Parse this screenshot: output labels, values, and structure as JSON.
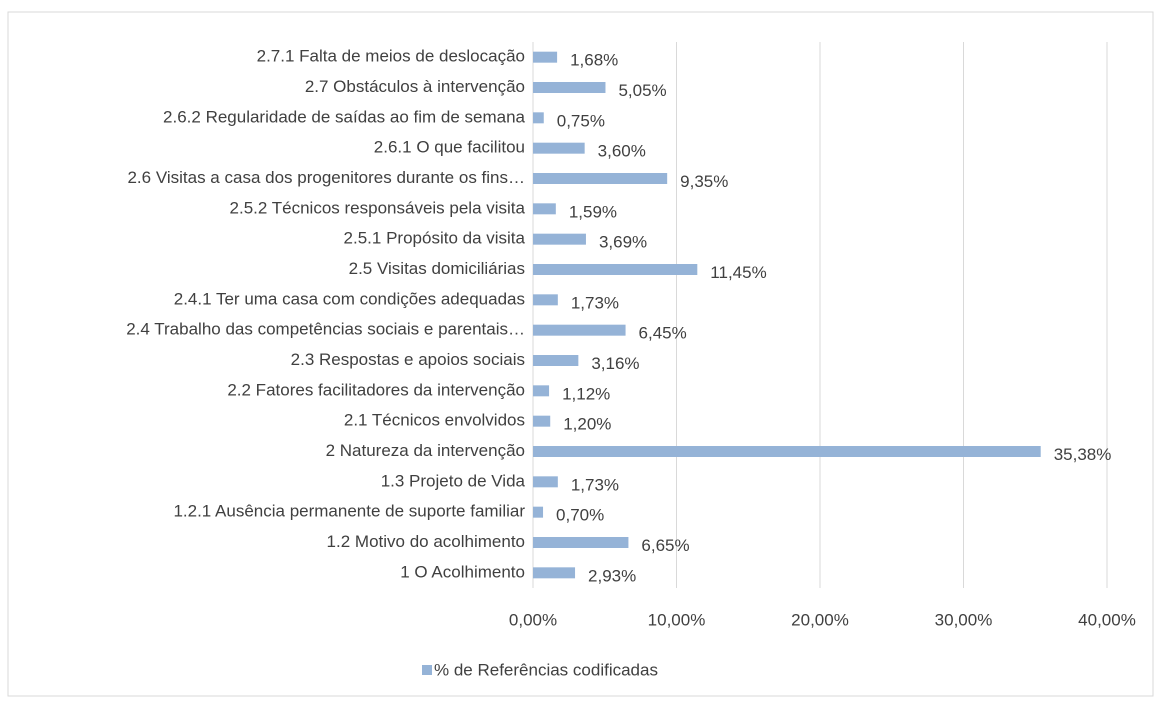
{
  "chart_data": {
    "type": "barh",
    "categories": [
      "2.7.1 Falta de meios de deslocação",
      "2.7 Obstáculos à intervenção",
      "2.6.2 Regularidade de saídas ao fim de semana",
      "2.6.1 O que facilitou",
      "2.6 Visitas a casa dos progenitores durante os fins…",
      "2.5.2 Técnicos responsáveis pela visita",
      "2.5.1 Propósito da visita",
      "2.5 Visitas domiciliárias",
      "2.4.1 Ter uma casa com condições adequadas",
      "2.4 Trabalho das competências sociais e parentais…",
      "2.3 Respostas e apoios sociais",
      "2.2 Fatores facilitadores da intervenção",
      "2.1 Técnicos envolvidos",
      "2 Natureza da intervenção",
      "1.3 Projeto de Vida",
      "1.2.1 Ausência permanente de suporte familiar",
      "1.2 Motivo do acolhimento",
      "1 O Acolhimento"
    ],
    "series": [
      {
        "name": "% de Referências codificadas",
        "color": "#95b3d7",
        "values": [
          1.68,
          5.05,
          0.75,
          3.6,
          9.35,
          1.59,
          3.69,
          11.45,
          1.73,
          6.45,
          3.16,
          1.12,
          1.2,
          35.38,
          1.73,
          0.7,
          6.65,
          2.93
        ],
        "value_labels": [
          "1,68%",
          "5,05%",
          "0,75%",
          "3,60%",
          "9,35%",
          "1,59%",
          "3,69%",
          "11,45%",
          "1,73%",
          "6,45%",
          "3,16%",
          "1,12%",
          "1,20%",
          "35,38%",
          "1,73%",
          "0,70%",
          "6,65%",
          "2,93%"
        ]
      }
    ],
    "xlim": [
      0,
      40
    ],
    "xticks": [
      {
        "value": 0,
        "label": "0,00%"
      },
      {
        "value": 10,
        "label": "10,00%"
      },
      {
        "value": 20,
        "label": "20,00%"
      },
      {
        "value": 30,
        "label": "30,00%"
      },
      {
        "value": 40,
        "label": "40,00%"
      }
    ],
    "grid": true,
    "legend": "bottom"
  }
}
